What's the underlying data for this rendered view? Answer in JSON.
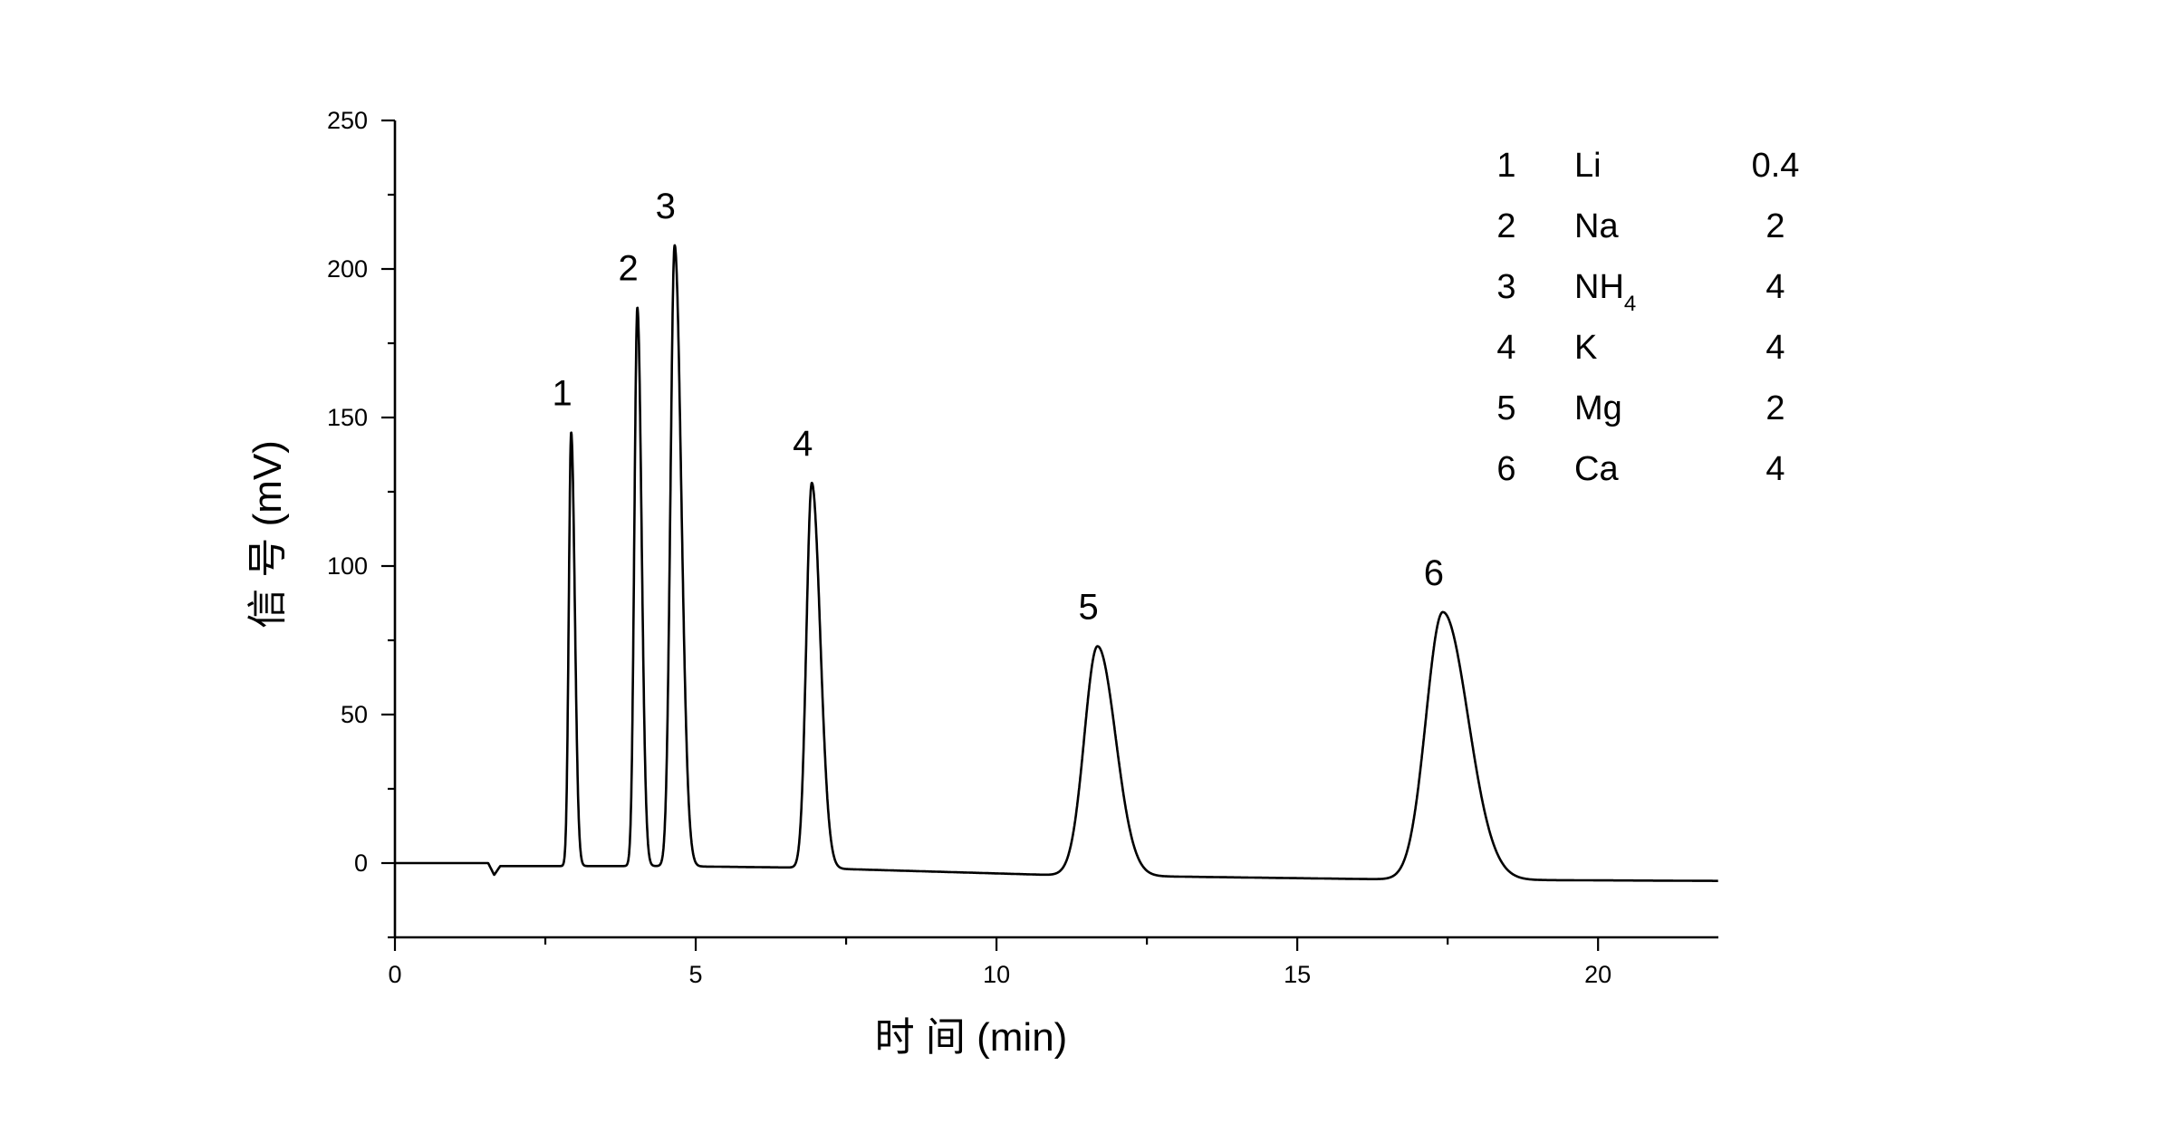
{
  "chart_data": {
    "type": "line",
    "title": "",
    "xlabel": "时 间 (min)",
    "ylabel": "信 号 (mV)",
    "xlim": [
      0,
      22
    ],
    "ylim": [
      -25,
      250
    ],
    "x_ticks": [
      0,
      5,
      10,
      15,
      20
    ],
    "y_ticks": [
      0,
      50,
      100,
      150,
      200,
      250
    ],
    "grid": false,
    "legend_position": "top-right",
    "baseline": {
      "x": [
        0,
        1.55,
        1.65,
        1.75,
        2.7,
        4.4,
        6.6,
        10.9,
        16.6,
        22
      ],
      "y": [
        0,
        0,
        -4,
        -1,
        -1,
        -1,
        -1.5,
        -4,
        -5.5,
        -6
      ]
    },
    "peaks": [
      {
        "label": "1",
        "x": 2.93,
        "y": 145,
        "sigma_left": 0.04,
        "sigma_right": 0.06
      },
      {
        "label": "2",
        "x": 4.03,
        "y": 187,
        "sigma_left": 0.05,
        "sigma_right": 0.07
      },
      {
        "label": "3",
        "x": 4.65,
        "y": 208,
        "sigma_left": 0.07,
        "sigma_right": 0.11
      },
      {
        "label": "4",
        "x": 6.93,
        "y": 128,
        "sigma_left": 0.09,
        "sigma_right": 0.14
      },
      {
        "label": "5",
        "x": 11.68,
        "y": 73,
        "sigma_left": 0.22,
        "sigma_right": 0.3
      },
      {
        "label": "6",
        "x": 17.42,
        "y": 84.5,
        "sigma_left": 0.28,
        "sigma_right": 0.42
      }
    ],
    "legend": [
      {
        "num": "1",
        "ion": "Li",
        "sub": "",
        "conc": "0.4"
      },
      {
        "num": "2",
        "ion": "Na",
        "sub": "",
        "conc": "2"
      },
      {
        "num": "3",
        "ion": "NH",
        "sub": "4",
        "conc": "4"
      },
      {
        "num": "4",
        "ion": "K",
        "sub": "",
        "conc": "4"
      },
      {
        "num": "5",
        "ion": "Mg",
        "sub": "",
        "conc": "2"
      },
      {
        "num": "6",
        "ion": "Ca",
        "sub": "",
        "conc": "4"
      }
    ]
  }
}
